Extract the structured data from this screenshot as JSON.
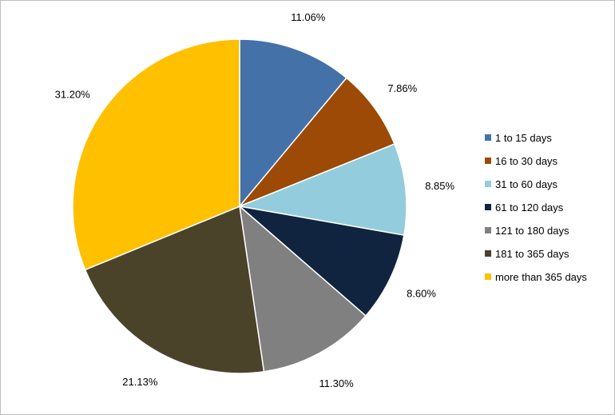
{
  "chart_data": {
    "type": "pie",
    "title": "",
    "categories": [
      "1 to 15 days",
      "16 to 30 days",
      "31 to 60 days",
      "61 to 120 days",
      "121 to 180 days",
      "181 to 365 days",
      "more than 365 days"
    ],
    "values": [
      11.06,
      7.86,
      8.85,
      8.6,
      11.3,
      21.13,
      31.2
    ],
    "data_labels": [
      "11.06%",
      "7.86%",
      "8.85%",
      "8.60%",
      "11.30%",
      "21.13%",
      "31.20%"
    ],
    "colors": [
      "#4472a8",
      "#9c4a06",
      "#93cddd",
      "#10243f",
      "#808080",
      "#4a432a",
      "#ffc000"
    ],
    "start_angle": "12 o'clock",
    "direction": "clockwise",
    "legend_position": "right"
  }
}
